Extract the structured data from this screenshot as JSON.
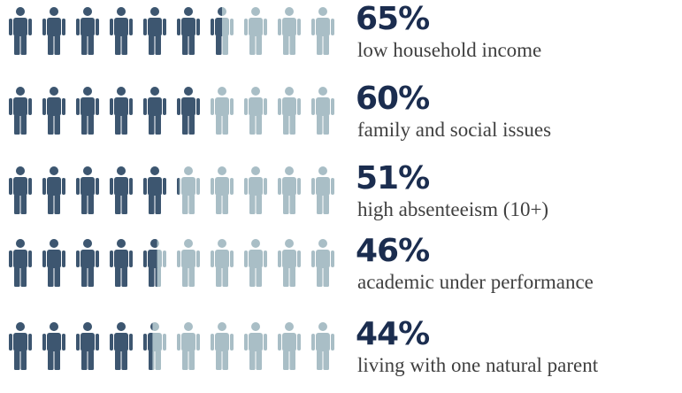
{
  "chart_data": {
    "type": "pictograph",
    "icons_per_row": 10,
    "colors": {
      "filled": "#3d5670",
      "empty": "#a9bec6"
    },
    "rows": [
      {
        "value": 65,
        "label": "65%",
        "description": "low household income"
      },
      {
        "value": 60,
        "label": "60%",
        "description": "family and social issues"
      },
      {
        "value": 51,
        "label": "51%",
        "description": "high absenteeism (10+)"
      },
      {
        "value": 46,
        "label": "46%",
        "description": "academic under performance"
      },
      {
        "value": 44,
        "label": "44%",
        "description": "living with one natural parent"
      }
    ]
  }
}
